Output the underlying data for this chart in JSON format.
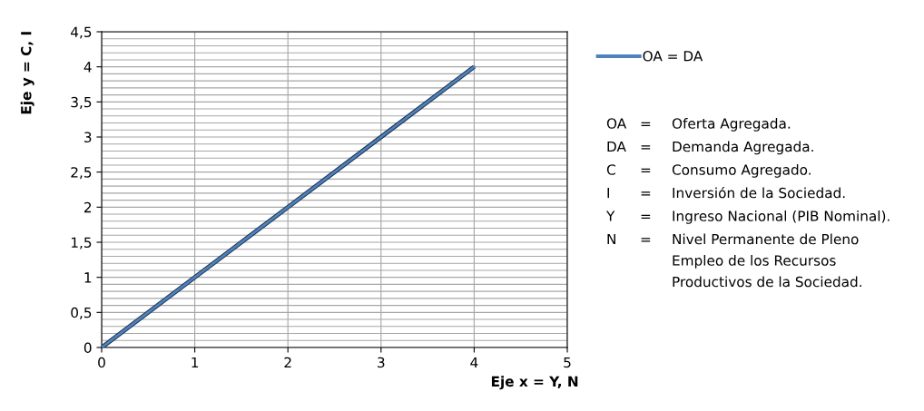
{
  "chart_data": {
    "type": "line",
    "xlabel": "Eje x = Y, N",
    "ylabel": "Eje y = C, I",
    "x": [
      0,
      1,
      2,
      3,
      4
    ],
    "series": [
      {
        "name": "OA = DA",
        "color": "#4f81bd",
        "values": [
          0,
          1,
          2,
          3,
          4
        ]
      }
    ],
    "xlim": [
      0,
      5
    ],
    "xticks": [
      0,
      1,
      2,
      3,
      4,
      5
    ],
    "ylim": [
      0,
      4.5
    ],
    "yticks": [
      0,
      {
        "value": 0.1,
        "label": null
      },
      {
        "value": 0.2,
        "label": null
      },
      {
        "value": 0.3,
        "label": null
      },
      {
        "value": 0.4,
        "label": null
      },
      {
        "value": 0.5,
        "label": "0,5"
      },
      {
        "value": 0.6,
        "label": null
      },
      {
        "value": 0.7,
        "label": null
      },
      {
        "value": 0.8,
        "label": null
      },
      {
        "value": 0.9,
        "label": null
      },
      1,
      {
        "value": 1.1,
        "label": null
      },
      {
        "value": 1.2,
        "label": null
      },
      {
        "value": 1.3,
        "label": null
      },
      {
        "value": 1.4,
        "label": null
      },
      {
        "value": 1.5,
        "label": "1,5"
      },
      {
        "value": 1.6,
        "label": null
      },
      {
        "value": 1.7,
        "label": null
      },
      {
        "value": 1.8,
        "label": null
      },
      {
        "value": 1.9,
        "label": null
      },
      2,
      {
        "value": 2.1,
        "label": null
      },
      {
        "value": 2.2,
        "label": null
      },
      {
        "value": 2.3,
        "label": null
      },
      {
        "value": 2.4,
        "label": null
      },
      {
        "value": 2.5,
        "label": "2,5"
      },
      {
        "value": 2.6,
        "label": null
      },
      {
        "value": 2.7,
        "label": null
      },
      {
        "value": 2.8,
        "label": null
      },
      {
        "value": 2.9,
        "label": null
      },
      3,
      {
        "value": 3.1,
        "label": null
      },
      {
        "value": 3.2,
        "label": null
      },
      {
        "value": 3.3,
        "label": null
      },
      {
        "value": 3.4,
        "label": null
      },
      {
        "value": 3.5,
        "label": "3,5"
      },
      {
        "value": 3.6,
        "label": null
      },
      {
        "value": 3.7,
        "label": null
      },
      {
        "value": 3.8,
        "label": null
      },
      {
        "value": 3.9,
        "label": null
      },
      4,
      {
        "value": 4.1,
        "label": null
      },
      {
        "value": 4.2,
        "label": null
      },
      {
        "value": 4.3,
        "label": null
      },
      {
        "value": 4.4,
        "label": null
      },
      {
        "value": 4.5,
        "label": "4,5"
      }
    ],
    "grid": true,
    "legend": "right",
    "marker": "none",
    "line_style": "solid",
    "annotations": [
      "OA = Oferta Agregada.",
      "DA = Demanda Agregada.",
      "C = Consumo Agregado.",
      "I = Inversión de la Sociedad.",
      "Y = Ingreso Nacional (PIB Nominal).",
      "N = Nivel Permanente de Pleno\nEmpleo de los Recursos\nProductivos de la Sociedad."
    ]
  }
}
